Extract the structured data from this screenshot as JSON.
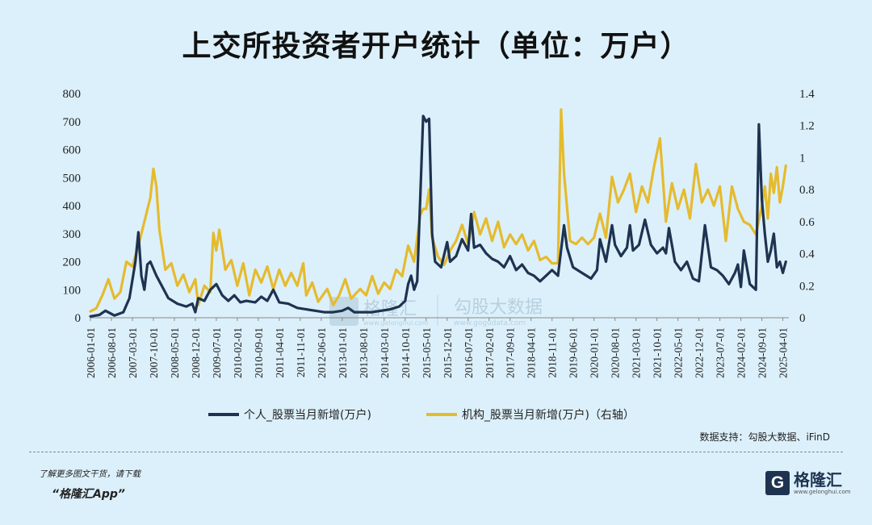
{
  "title": "上交所投资者开户统计（单位：万户）",
  "source": "数据支持：勾股大数据、iFinD",
  "promo": {
    "line1": "了解更多图文干货，请下载",
    "line2": "“格隆汇App”"
  },
  "brand": {
    "logo_letter": "G",
    "name": "格隆汇",
    "url": "www.gelonghui.com"
  },
  "watermarks": {
    "left_name": "格隆汇",
    "left_url": "www.gelonghui.com",
    "right_name": "勾股大数据",
    "right_url": "www.gogudata.com"
  },
  "colors": {
    "individual": "#1e3350",
    "institution": "#e5bb2e",
    "background": "#dcf0fb"
  },
  "chart_data": {
    "type": "line",
    "title": "上交所投资者开户统计（单位：万户）",
    "x_ticks": [
      "2006-01-01",
      "2006-08-01",
      "2007-03-01",
      "2007-10-01",
      "2008-05-01",
      "2008-12-01",
      "2009-07-01",
      "2010-02-01",
      "2010-09-01",
      "2011-04-01",
      "2011-11-01",
      "2012-06-01",
      "2013-01-01",
      "2013-08-01",
      "2014-03-01",
      "2014-10-01",
      "2015-05-01",
      "2015-12-01",
      "2016-07-01",
      "2017-02-01",
      "2017-09-01",
      "2018-04-01",
      "2018-11-01",
      "2019-06-01",
      "2020-01-01",
      "2020-08-01",
      "2021-03-01",
      "2021-10-01",
      "2022-05-01",
      "2022-12-01",
      "2023-07-01",
      "2024-02-01",
      "2024-09-01",
      "2025-04-01"
    ],
    "x_range": [
      "2006-01",
      "2025-06"
    ],
    "y_left": {
      "ticks": [
        "0",
        "100",
        "200",
        "300",
        "400",
        "500",
        "600",
        "700",
        "800"
      ],
      "range": [
        0,
        800
      ]
    },
    "y_right": {
      "ticks": [
        "0",
        "0.2",
        "0.4",
        "0.6",
        "0.8",
        "1",
        "1.2",
        "1.4"
      ],
      "range": [
        0,
        1.4
      ]
    },
    "legend_position": "bottom",
    "series": [
      {
        "name": "个人_股票当月新增(万户)",
        "axis": "left",
        "color": "#1e3350",
        "points": [
          [
            "2006-01",
            5
          ],
          [
            "2006-04",
            10
          ],
          [
            "2006-06",
            25
          ],
          [
            "2006-09",
            8
          ],
          [
            "2006-12",
            20
          ],
          [
            "2007-02",
            70
          ],
          [
            "2007-04",
            200
          ],
          [
            "2007-05",
            305
          ],
          [
            "2007-06",
            150
          ],
          [
            "2007-07",
            100
          ],
          [
            "2007-08",
            190
          ],
          [
            "2007-09",
            200
          ],
          [
            "2007-11",
            150
          ],
          [
            "2008-01",
            110
          ],
          [
            "2008-03",
            70
          ],
          [
            "2008-06",
            50
          ],
          [
            "2008-09",
            40
          ],
          [
            "2008-11",
            50
          ],
          [
            "2008-12",
            20
          ],
          [
            "2009-01",
            70
          ],
          [
            "2009-03",
            60
          ],
          [
            "2009-05",
            100
          ],
          [
            "2009-07",
            120
          ],
          [
            "2009-09",
            80
          ],
          [
            "2009-11",
            60
          ],
          [
            "2010-01",
            80
          ],
          [
            "2010-03",
            55
          ],
          [
            "2010-05",
            60
          ],
          [
            "2010-08",
            55
          ],
          [
            "2010-10",
            75
          ],
          [
            "2010-12",
            60
          ],
          [
            "2011-02",
            100
          ],
          [
            "2011-04",
            55
          ],
          [
            "2011-07",
            50
          ],
          [
            "2011-10",
            35
          ],
          [
            "2012-01",
            30
          ],
          [
            "2012-04",
            25
          ],
          [
            "2012-07",
            20
          ],
          [
            "2012-10",
            20
          ],
          [
            "2013-01",
            25
          ],
          [
            "2013-03",
            35
          ],
          [
            "2013-05",
            20
          ],
          [
            "2013-08",
            20
          ],
          [
            "2013-11",
            20
          ],
          [
            "2014-02",
            25
          ],
          [
            "2014-05",
            30
          ],
          [
            "2014-08",
            40
          ],
          [
            "2014-10",
            60
          ],
          [
            "2014-11",
            120
          ],
          [
            "2014-12",
            150
          ],
          [
            "2015-01",
            100
          ],
          [
            "2015-02",
            130
          ],
          [
            "2015-03",
            420
          ],
          [
            "2015-04",
            720
          ],
          [
            "2015-05",
            700
          ],
          [
            "2015-06",
            710
          ],
          [
            "2015-07",
            300
          ],
          [
            "2015-08",
            200
          ],
          [
            "2015-10",
            180
          ],
          [
            "2015-12",
            270
          ],
          [
            "2016-01",
            200
          ],
          [
            "2016-03",
            220
          ],
          [
            "2016-05",
            280
          ],
          [
            "2016-07",
            240
          ],
          [
            "2016-08",
            370
          ],
          [
            "2016-09",
            250
          ],
          [
            "2016-11",
            260
          ],
          [
            "2017-01",
            230
          ],
          [
            "2017-03",
            210
          ],
          [
            "2017-05",
            200
          ],
          [
            "2017-07",
            180
          ],
          [
            "2017-09",
            220
          ],
          [
            "2017-11",
            170
          ],
          [
            "2018-01",
            190
          ],
          [
            "2018-03",
            160
          ],
          [
            "2018-05",
            150
          ],
          [
            "2018-07",
            130
          ],
          [
            "2018-09",
            150
          ],
          [
            "2018-11",
            170
          ],
          [
            "2019-01",
            150
          ],
          [
            "2019-03",
            330
          ],
          [
            "2019-04",
            250
          ],
          [
            "2019-06",
            180
          ],
          [
            "2019-09",
            160
          ],
          [
            "2019-12",
            140
          ],
          [
            "2020-02",
            170
          ],
          [
            "2020-03",
            280
          ],
          [
            "2020-05",
            200
          ],
          [
            "2020-07",
            330
          ],
          [
            "2020-08",
            260
          ],
          [
            "2020-10",
            220
          ],
          [
            "2020-12",
            250
          ],
          [
            "2021-01",
            330
          ],
          [
            "2021-02",
            240
          ],
          [
            "2021-04",
            260
          ],
          [
            "2021-06",
            350
          ],
          [
            "2021-08",
            260
          ],
          [
            "2021-10",
            230
          ],
          [
            "2021-12",
            250
          ],
          [
            "2022-01",
            230
          ],
          [
            "2022-02",
            320
          ],
          [
            "2022-04",
            200
          ],
          [
            "2022-06",
            170
          ],
          [
            "2022-08",
            200
          ],
          [
            "2022-10",
            140
          ],
          [
            "2022-12",
            130
          ],
          [
            "2023-02",
            330
          ],
          [
            "2023-04",
            180
          ],
          [
            "2023-06",
            170
          ],
          [
            "2023-08",
            150
          ],
          [
            "2023-10",
            120
          ],
          [
            "2023-12",
            160
          ],
          [
            "2024-01",
            190
          ],
          [
            "2024-02",
            110
          ],
          [
            "2024-03",
            240
          ],
          [
            "2024-05",
            120
          ],
          [
            "2024-07",
            100
          ],
          [
            "2024-08",
            690
          ],
          [
            "2024-09",
            420
          ],
          [
            "2024-10",
            300
          ],
          [
            "2024-11",
            200
          ],
          [
            "2024-12",
            240
          ],
          [
            "2025-01",
            300
          ],
          [
            "2025-02",
            180
          ],
          [
            "2025-03",
            200
          ],
          [
            "2025-04",
            160
          ],
          [
            "2025-05",
            200
          ]
        ]
      },
      {
        "name": "机构_股票当月新增(万户)（右轴）",
        "axis": "right",
        "color": "#e5bb2e",
        "points": [
          [
            "2006-01",
            0.04
          ],
          [
            "2006-03",
            0.06
          ],
          [
            "2006-05",
            0.14
          ],
          [
            "2006-07",
            0.24
          ],
          [
            "2006-09",
            0.12
          ],
          [
            "2006-11",
            0.16
          ],
          [
            "2007-01",
            0.35
          ],
          [
            "2007-03",
            0.32
          ],
          [
            "2007-05",
            0.45
          ],
          [
            "2007-07",
            0.6
          ],
          [
            "2007-09",
            0.75
          ],
          [
            "2007-10",
            0.93
          ],
          [
            "2007-11",
            0.82
          ],
          [
            "2007-12",
            0.55
          ],
          [
            "2008-02",
            0.3
          ],
          [
            "2008-04",
            0.34
          ],
          [
            "2008-06",
            0.2
          ],
          [
            "2008-08",
            0.27
          ],
          [
            "2008-10",
            0.16
          ],
          [
            "2008-12",
            0.24
          ],
          [
            "2009-01",
            0.08
          ],
          [
            "2009-03",
            0.2
          ],
          [
            "2009-05",
            0.16
          ],
          [
            "2009-06",
            0.53
          ],
          [
            "2009-07",
            0.42
          ],
          [
            "2009-08",
            0.55
          ],
          [
            "2009-10",
            0.3
          ],
          [
            "2009-12",
            0.36
          ],
          [
            "2010-02",
            0.2
          ],
          [
            "2010-04",
            0.34
          ],
          [
            "2010-06",
            0.14
          ],
          [
            "2010-08",
            0.3
          ],
          [
            "2010-10",
            0.22
          ],
          [
            "2010-12",
            0.32
          ],
          [
            "2011-02",
            0.18
          ],
          [
            "2011-04",
            0.3
          ],
          [
            "2011-06",
            0.2
          ],
          [
            "2011-08",
            0.28
          ],
          [
            "2011-10",
            0.2
          ],
          [
            "2011-12",
            0.34
          ],
          [
            "2012-01",
            0.14
          ],
          [
            "2012-03",
            0.22
          ],
          [
            "2012-05",
            0.1
          ],
          [
            "2012-08",
            0.18
          ],
          [
            "2012-10",
            0.08
          ],
          [
            "2012-12",
            0.14
          ],
          [
            "2013-02",
            0.24
          ],
          [
            "2013-04",
            0.12
          ],
          [
            "2013-07",
            0.18
          ],
          [
            "2013-09",
            0.14
          ],
          [
            "2013-11",
            0.26
          ],
          [
            "2014-01",
            0.15
          ],
          [
            "2014-03",
            0.22
          ],
          [
            "2014-05",
            0.18
          ],
          [
            "2014-07",
            0.3
          ],
          [
            "2014-09",
            0.26
          ],
          [
            "2014-11",
            0.45
          ],
          [
            "2015-01",
            0.35
          ],
          [
            "2015-03",
            0.64
          ],
          [
            "2015-04",
            0.68
          ],
          [
            "2015-05",
            0.68
          ],
          [
            "2015-06",
            0.8
          ],
          [
            "2015-07",
            0.5
          ],
          [
            "2015-09",
            0.38
          ],
          [
            "2015-11",
            0.33
          ],
          [
            "2016-01",
            0.42
          ],
          [
            "2016-03",
            0.48
          ],
          [
            "2016-05",
            0.58
          ],
          [
            "2016-07",
            0.46
          ],
          [
            "2016-09",
            0.66
          ],
          [
            "2016-11",
            0.52
          ],
          [
            "2017-01",
            0.62
          ],
          [
            "2017-03",
            0.48
          ],
          [
            "2017-05",
            0.6
          ],
          [
            "2017-07",
            0.44
          ],
          [
            "2017-09",
            0.52
          ],
          [
            "2017-11",
            0.46
          ],
          [
            "2018-01",
            0.52
          ],
          [
            "2018-03",
            0.42
          ],
          [
            "2018-05",
            0.48
          ],
          [
            "2018-07",
            0.36
          ],
          [
            "2018-09",
            0.38
          ],
          [
            "2018-11",
            0.34
          ],
          [
            "2019-01",
            0.34
          ],
          [
            "2019-02",
            1.3
          ],
          [
            "2019-03",
            0.9
          ],
          [
            "2019-05",
            0.48
          ],
          [
            "2019-07",
            0.46
          ],
          [
            "2019-09",
            0.5
          ],
          [
            "2019-11",
            0.46
          ],
          [
            "2020-01",
            0.5
          ],
          [
            "2020-03",
            0.65
          ],
          [
            "2020-05",
            0.5
          ],
          [
            "2020-07",
            0.88
          ],
          [
            "2020-09",
            0.72
          ],
          [
            "2020-11",
            0.8
          ],
          [
            "2021-01",
            0.9
          ],
          [
            "2021-03",
            0.66
          ],
          [
            "2021-05",
            0.82
          ],
          [
            "2021-07",
            0.72
          ],
          [
            "2021-09",
            0.94
          ],
          [
            "2021-11",
            1.12
          ],
          [
            "2022-01",
            0.6
          ],
          [
            "2022-03",
            0.84
          ],
          [
            "2022-05",
            0.68
          ],
          [
            "2022-07",
            0.8
          ],
          [
            "2022-09",
            0.62
          ],
          [
            "2022-11",
            0.96
          ],
          [
            "2023-01",
            0.72
          ],
          [
            "2023-03",
            0.8
          ],
          [
            "2023-05",
            0.7
          ],
          [
            "2023-07",
            0.82
          ],
          [
            "2023-09",
            0.48
          ],
          [
            "2023-11",
            0.82
          ],
          [
            "2024-01",
            0.68
          ],
          [
            "2024-03",
            0.6
          ],
          [
            "2024-05",
            0.58
          ],
          [
            "2024-07",
            0.52
          ],
          [
            "2024-09",
            0.7
          ],
          [
            "2024-10",
            0.82
          ],
          [
            "2024-11",
            0.62
          ],
          [
            "2024-12",
            0.9
          ],
          [
            "2025-01",
            0.78
          ],
          [
            "2025-02",
            0.94
          ],
          [
            "2025-03",
            0.72
          ],
          [
            "2025-04",
            0.82
          ],
          [
            "2025-05",
            0.95
          ]
        ]
      }
    ]
  }
}
